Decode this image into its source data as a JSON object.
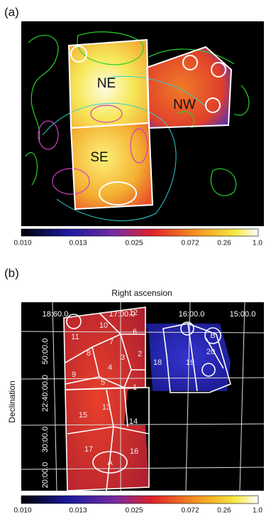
{
  "panel_a": {
    "label": "(a)",
    "regions": [
      "NE",
      "NW",
      "SE"
    ],
    "colorbar": [
      "0.010",
      "0.013",
      "0.025",
      "0.072",
      "0.26",
      "1.0"
    ]
  },
  "panel_b": {
    "label": "(b)",
    "x_axis_title": "Right ascension",
    "y_axis_title": "Declination",
    "ra_ticks": [
      "18:60.0",
      "17:00.0",
      "16:00.0",
      "15:00.0"
    ],
    "dec_ticks": [
      "50:00.0",
      "22:40:00.0",
      "30:00.0",
      "20:00.0"
    ],
    "regions": [
      "1",
      "2",
      "3",
      "4",
      "5",
      "6",
      "7",
      "8",
      "9",
      "10",
      "11",
      "12",
      "13",
      "14",
      "15",
      "16",
      "17",
      "18",
      "19",
      "20",
      "A",
      "B"
    ],
    "colorbar": [
      "0.010",
      "0.013",
      "0.025",
      "0.072",
      "0.26",
      "1.0"
    ]
  }
}
